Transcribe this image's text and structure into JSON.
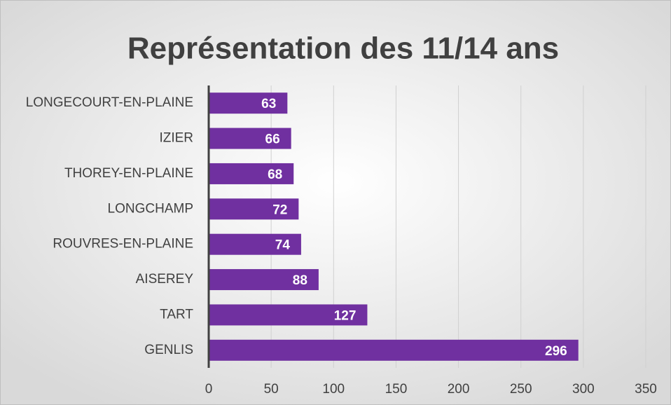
{
  "chart_data": {
    "type": "bar",
    "orientation": "horizontal",
    "title": "Représentation des 11/14 ans",
    "categories": [
      "LONGECOURT-EN-PLAINE",
      "IZIER",
      "THOREY-EN-PLAINE",
      "LONGCHAMP",
      "ROUVRES-EN-PLAINE",
      "AISEREY",
      "TART",
      "GENLIS"
    ],
    "values": [
      63,
      66,
      68,
      72,
      74,
      88,
      127,
      296
    ],
    "color": "#7030a0",
    "xlim": [
      0,
      350
    ],
    "xticks": [
      0,
      50,
      100,
      150,
      200,
      250,
      300,
      350
    ],
    "grid": true
  }
}
